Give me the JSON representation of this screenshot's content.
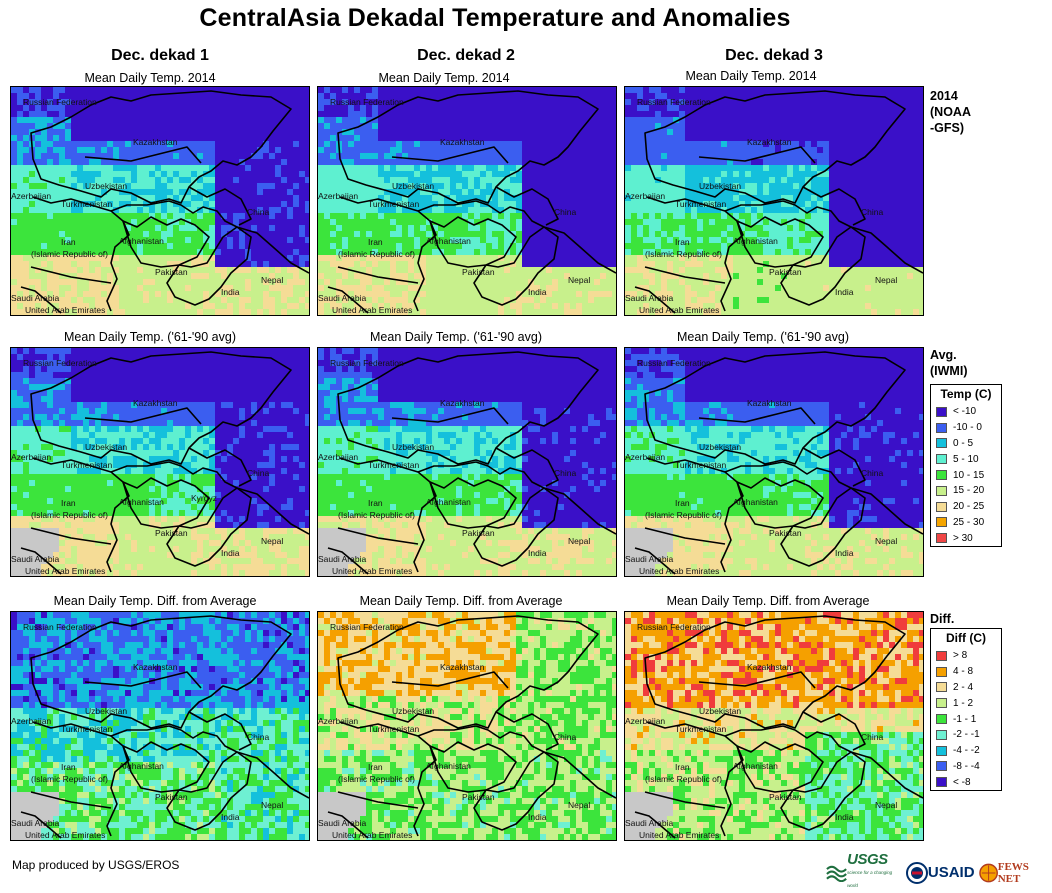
{
  "title": "CentralAsia Dekadal Temperature and Anomalies",
  "columns": [
    "Dec. dekad 1",
    "Dec. dekad 2",
    "Dec. dekad 3"
  ],
  "rows": [
    {
      "key": "current",
      "subtitles": [
        "Mean Daily Temp. 2014",
        "Mean Daily Temp. 2014",
        "Mean Daily Temp. 2014"
      ],
      "tag": [
        "2014",
        "(NOAA",
        "-GFS)"
      ]
    },
    {
      "key": "avg",
      "subtitles": [
        "Mean Daily Temp. ('61-'90 avg)",
        "Mean Daily Temp. ('61-'90 avg)",
        "Mean Daily Temp. ('61-'90 avg)"
      ],
      "tag": [
        "Avg.",
        "(IWMI)"
      ]
    },
    {
      "key": "diff",
      "subtitles": [
        "Mean Daily Temp. Diff. from Average",
        "Mean Daily Temp. Diff. from Average",
        "Mean Daily Temp. Diff. from Average"
      ],
      "tag": [
        "Diff."
      ]
    }
  ],
  "map_labels": {
    "russia": "Russian Federation",
    "kazakhstan": "Kazakhstan",
    "uzbekistan": "Uzbekistan",
    "azerbaijan": "Azerbaijan",
    "turkmenistan": "Turkmenistan",
    "china": "China",
    "iran_1": "Iran",
    "iran_2": "(Islamic Republic of)",
    "afghanistan": "Afghanistan",
    "pakistan": "Pakistan",
    "india": "India",
    "nepal": "Nepal",
    "saudi": "Saudi Arabia",
    "uae": "United Arab Emirates",
    "kyrgyz": "Kyrgyz"
  },
  "legend_temp": {
    "title": "Temp (C)",
    "items": [
      {
        "label": "< -10",
        "color": "#3a10c8"
      },
      {
        "label": "-10 - 0",
        "color": "#3b5ef0"
      },
      {
        "label": "0 - 5",
        "color": "#14c0dc"
      },
      {
        "label": "5 - 10",
        "color": "#5ef0d0"
      },
      {
        "label": "10 - 15",
        "color": "#3ce43c"
      },
      {
        "label": "15 - 20",
        "color": "#c8f08c"
      },
      {
        "label": "20 - 25",
        "color": "#f5dc96"
      },
      {
        "label": "25 - 30",
        "color": "#f5a500"
      },
      {
        "label": "> 30",
        "color": "#f04646"
      }
    ]
  },
  "legend_diff": {
    "title": "Diff (C)",
    "items": [
      {
        "label": "> 8",
        "color": "#f03c3c"
      },
      {
        "label": "4 - 8",
        "color": "#f5a000"
      },
      {
        "label": "2 - 4",
        "color": "#f5dc96"
      },
      {
        "label": "1 - 2",
        "color": "#c8f08c"
      },
      {
        "label": "-1 - 1",
        "color": "#3ce43c"
      },
      {
        "label": "-2 - -1",
        "color": "#6ef0d2"
      },
      {
        "label": "-4 - -2",
        "color": "#14c0dc"
      },
      {
        "label": "-8 - -4",
        "color": "#3b5ef0"
      },
      {
        "label": "< -8",
        "color": "#3a10c8"
      }
    ]
  },
  "credit": "Map produced by USGS/EROS",
  "logos": {
    "usgs": "USGS",
    "usgs_tagline": "science for a changing world",
    "usaid": "USAID",
    "fews": "FEWS NET"
  }
}
